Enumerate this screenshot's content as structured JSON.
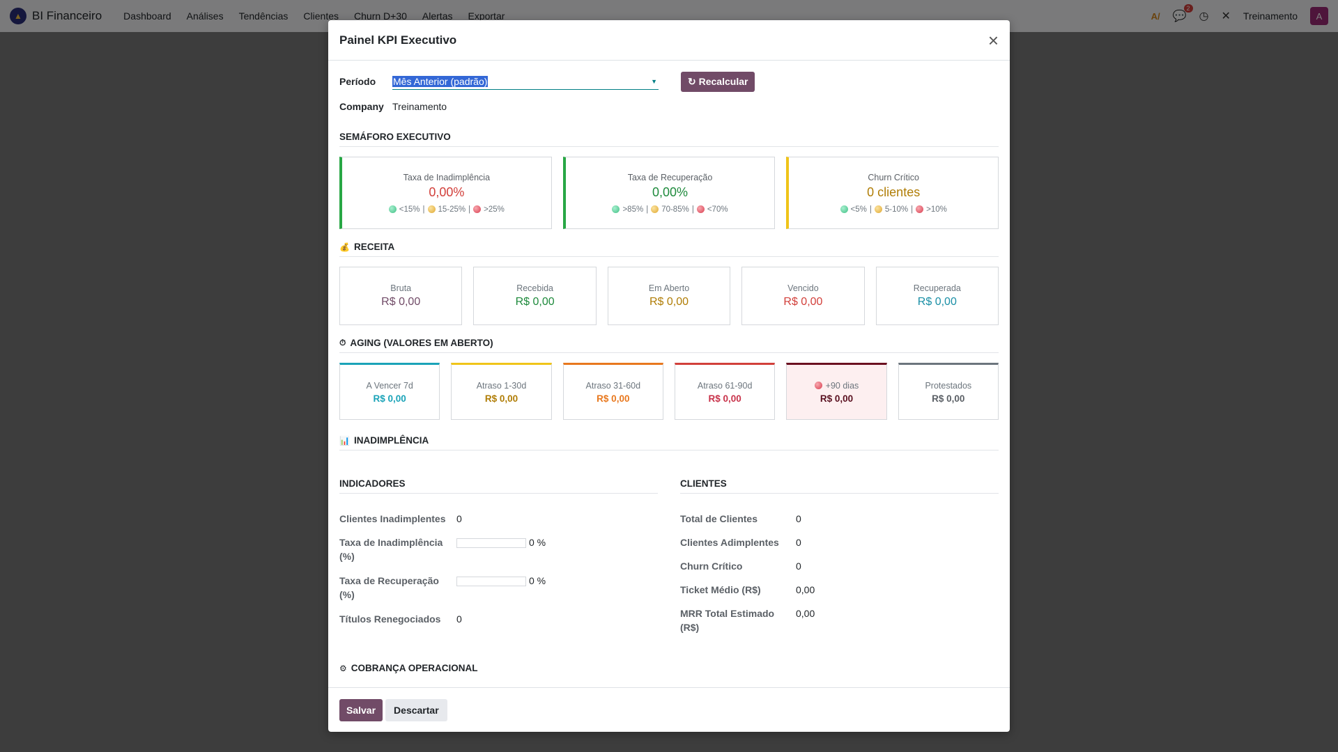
{
  "navbar": {
    "brand": "BI Financeiro",
    "menu": [
      "Dashboard",
      "Análises",
      "Tendências",
      "Clientes",
      "Churn D+30",
      "Alertas",
      "Exportar"
    ],
    "messages_badge": "2",
    "company": "Treinamento",
    "avatar_letter": "A"
  },
  "modal": {
    "title": "Painel KPI Executivo",
    "close_icon": "×",
    "periodo_label": "Período",
    "periodo_value": "Mês Anterior (padrão)",
    "recalc_label": "Recalcular",
    "company_label": "Company",
    "company_value": "Treinamento",
    "save_label": "Salvar",
    "discard_label": "Descartar"
  },
  "semaforo": {
    "title": "SEMÁFORO EXECUTIVO",
    "cards": [
      {
        "label": "Taxa de Inadimplência",
        "value": "0,00%",
        "color": "#d23f3a",
        "l1": "<15%",
        "l2": "15-25%",
        "l3": ">25%"
      },
      {
        "label": "Taxa de Recuperação",
        "value": "0,00%",
        "color": "#1e8a3c",
        "l1": ">85%",
        "l2": "70-85%",
        "l3": "<70%"
      },
      {
        "label": "Churn Crítico",
        "value": "0 clientes",
        "color": "#b07d06",
        "l1": "<5%",
        "l2": "5-10%",
        "l3": ">10%"
      }
    ]
  },
  "receita": {
    "title": "RECEITA",
    "cards": [
      {
        "label": "Bruta",
        "value": "R$ 0,00",
        "color": "#714b67"
      },
      {
        "label": "Recebida",
        "value": "R$ 0,00",
        "color": "#1e8a3c"
      },
      {
        "label": "Em Aberto",
        "value": "R$ 0,00",
        "color": "#b07d06"
      },
      {
        "label": "Vencido",
        "value": "R$ 0,00",
        "color": "#d23f3a"
      },
      {
        "label": "Recuperada",
        "value": "R$ 0,00",
        "color": "#1a8fa6"
      }
    ]
  },
  "aging": {
    "title": "AGING (VALORES EM ABERTO)",
    "cards": [
      {
        "label": "A Vencer 7d",
        "value": "R$ 0,00",
        "color": "#1aa3b8",
        "border": "#1aa3b8"
      },
      {
        "label": "Atraso 1-30d",
        "value": "R$ 0,00",
        "color": "#b07d06",
        "border": "#f0c419"
      },
      {
        "label": "Atraso 31-60d",
        "value": "R$ 0,00",
        "color": "#e8781e",
        "border": "#e8781e"
      },
      {
        "label": "Atraso 61-90d",
        "value": "R$ 0,00",
        "color": "#c8324a",
        "border": "#d23f3a"
      },
      {
        "label": "+90 dias",
        "value": "R$ 0,00",
        "color": "#5a1020",
        "border": "#6b1020"
      },
      {
        "label": "Protestados",
        "value": "R$ 0,00",
        "color": "#5b6066",
        "border": "#6c757d"
      }
    ]
  },
  "inadimplencia": {
    "title": "INADIMPLÊNCIA",
    "indicadores_title": "INDICADORES",
    "clientes_title": "CLIENTES",
    "indicadores": {
      "clientes_inadimplentes_label": "Clientes Inadimplentes",
      "clientes_inadimplentes_value": "0",
      "taxa_inad_label": "Taxa de Inadimplência (%)",
      "taxa_inad_value": "0 %",
      "taxa_inad_progress": 0,
      "taxa_rec_label": "Taxa de Recuperação (%)",
      "taxa_rec_value": "0 %",
      "taxa_rec_progress": 0,
      "titulos_label": "Títulos Renegociados",
      "titulos_value": "0"
    },
    "clientes": {
      "total_label": "Total de Clientes",
      "total_value": "0",
      "adimplentes_label": "Clientes Adimplentes",
      "adimplentes_value": "0",
      "churn_label": "Churn Crítico",
      "churn_value": "0",
      "ticket_label": "Ticket Médio (R$)",
      "ticket_value": "0,00",
      "mrr_label": "MRR Total Estimado (R$)",
      "mrr_value": "0,00"
    }
  },
  "cobranca": {
    "title": "COBRANÇA OPERACIONAL"
  }
}
